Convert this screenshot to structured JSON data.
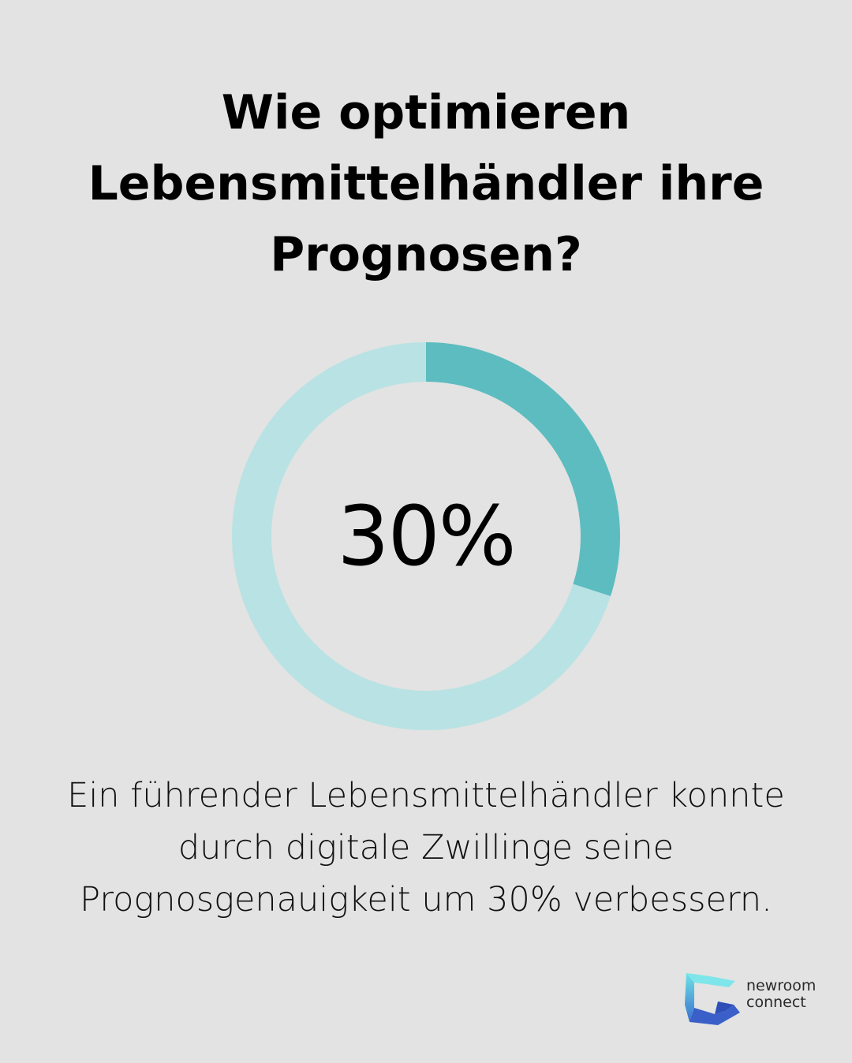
{
  "title_lines": [
    "Wie optimieren",
    "Lebensmittelhändler ihre",
    "Prognosen?"
  ],
  "chart_data": {
    "type": "pie",
    "style": "donut",
    "values": [
      30,
      70
    ],
    "center_label": "30%",
    "colors": {
      "highlight": "#5dbcc0",
      "remainder": "#b9e2e4"
    }
  },
  "description_lines": [
    "Ein führender Lebensmittelhändler konnte",
    "durch digitale Zwillinge seine",
    "Prognosgenauigkeit um 30% verbessern."
  ],
  "logo": {
    "line1": "newroom",
    "line2": "connect"
  }
}
